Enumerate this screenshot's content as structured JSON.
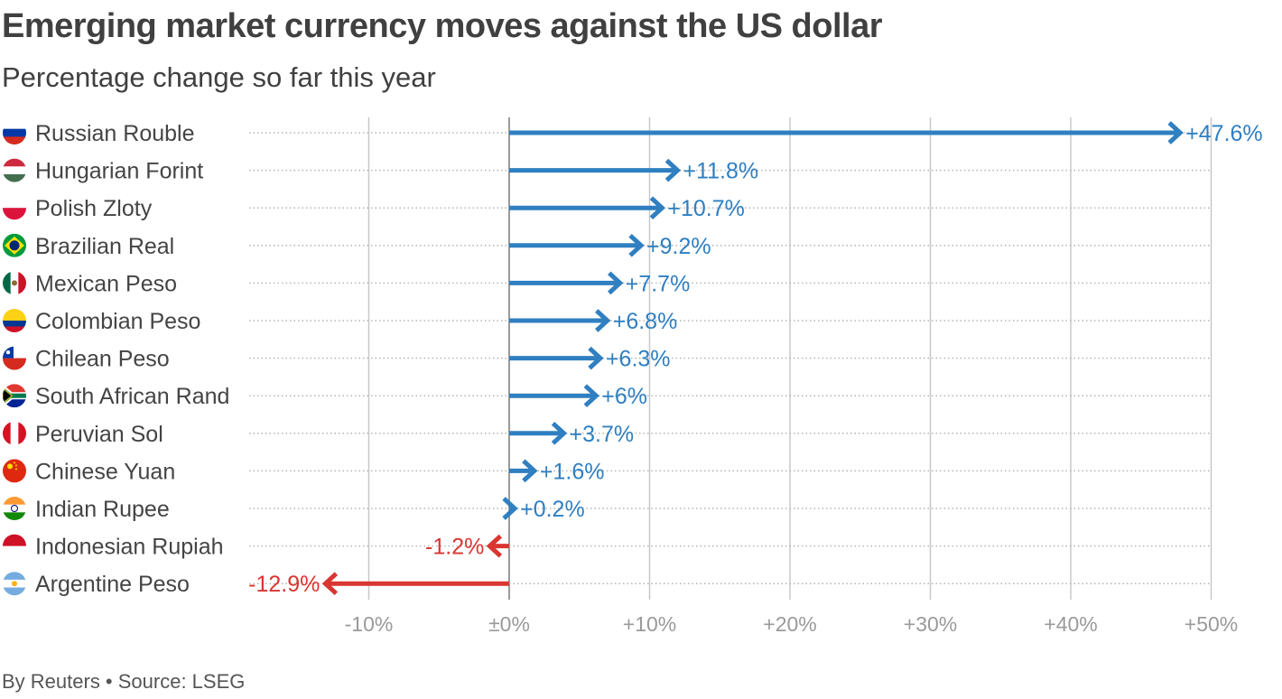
{
  "header": {
    "title": "Emerging market currency moves against the US dollar",
    "subtitle": "Percentage change so far this year"
  },
  "footer": {
    "credit": "By Reuters • Source: LSEG"
  },
  "colors": {
    "positive": "#2f7fc1",
    "negative": "#d93631",
    "grid": "#c8c8c8",
    "tick_text": "#9a9a9a",
    "label_text": "#444444"
  },
  "chart_data": {
    "type": "bar",
    "orientation": "horizontal",
    "title": "Emerging market currency moves against the US dollar",
    "subtitle": "Percentage change so far this year",
    "xlim": [
      -15,
      52
    ],
    "x_ticks": [
      -10,
      0,
      10,
      20,
      30,
      40,
      50
    ],
    "x_tick_labels": [
      "-10%",
      "±0%",
      "+10%",
      "+20%",
      "+30%",
      "+40%",
      "+50%"
    ],
    "grid": true,
    "categories": [
      {
        "name": "Russian Rouble",
        "value": 47.6,
        "label": "+47.6%",
        "flag": "russia"
      },
      {
        "name": "Hungarian Forint",
        "value": 11.8,
        "label": "+11.8%",
        "flag": "hungary"
      },
      {
        "name": "Polish Zloty",
        "value": 10.7,
        "label": "+10.7%",
        "flag": "poland"
      },
      {
        "name": "Brazilian Real",
        "value": 9.2,
        "label": "+9.2%",
        "flag": "brazil"
      },
      {
        "name": "Mexican Peso",
        "value": 7.7,
        "label": "+7.7%",
        "flag": "mexico"
      },
      {
        "name": "Colombian Peso",
        "value": 6.8,
        "label": "+6.8%",
        "flag": "colombia"
      },
      {
        "name": "Chilean Peso",
        "value": 6.3,
        "label": "+6.3%",
        "flag": "chile"
      },
      {
        "name": "South African Rand",
        "value": 6.0,
        "label": "+6%",
        "flag": "south-africa"
      },
      {
        "name": "Peruvian Sol",
        "value": 3.7,
        "label": "+3.7%",
        "flag": "peru"
      },
      {
        "name": "Chinese Yuan",
        "value": 1.6,
        "label": "+1.6%",
        "flag": "china"
      },
      {
        "name": "Indian Rupee",
        "value": 0.2,
        "label": "+0.2%",
        "flag": "india"
      },
      {
        "name": "Indonesian Rupiah",
        "value": -1.2,
        "label": "-1.2%",
        "flag": "indonesia"
      },
      {
        "name": "Argentine Peso",
        "value": -12.9,
        "label": "-12.9%",
        "flag": "argentina"
      }
    ]
  }
}
